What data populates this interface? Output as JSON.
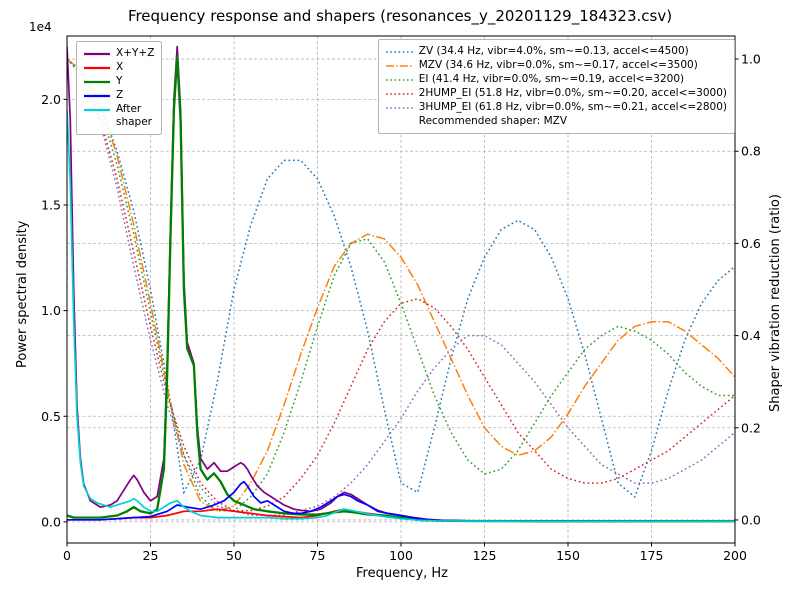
{
  "chart_data": {
    "type": "line",
    "title": "Frequency response and shapers (resonances_y_20201129_184323.csv)",
    "xlabel": "Frequency, Hz",
    "ylabel_left": "Power spectral density",
    "ylabel_right": "Shaper vibration reduction (ratio)",
    "y_offset_text": "1e4",
    "xlim": [
      0,
      200
    ],
    "x_ticks": [
      0,
      25,
      50,
      75,
      100,
      125,
      150,
      175,
      200
    ],
    "left_axis": {
      "lim": [
        -0.1,
        2.3
      ],
      "ticks": [
        0.0,
        0.5,
        1.0,
        1.5,
        2.0
      ],
      "tick_labels": [
        "0.0",
        "0.5",
        "1.0",
        "1.5",
        "2.0"
      ],
      "unit_scale": "1e4"
    },
    "right_axis": {
      "lim": [
        -0.05,
        1.05
      ],
      "ticks": [
        0.0,
        0.2,
        0.4,
        0.6,
        0.8,
        1.0
      ],
      "tick_labels": [
        "0.0",
        "0.2",
        "0.4",
        "0.6",
        "0.8",
        "1.0"
      ]
    },
    "grid": {
      "show": true,
      "color": "#b0b0b0"
    },
    "psd_series": [
      {
        "name": "X+Y+Z",
        "color": "#800080",
        "width": 1.7,
        "x": [
          0,
          1,
          2,
          3,
          4,
          5,
          7,
          10,
          13,
          15,
          17,
          19,
          20,
          21,
          23,
          25,
          27,
          29,
          30,
          31,
          32,
          33,
          34,
          35,
          36,
          37,
          38,
          39,
          40,
          42,
          44,
          46,
          48,
          50,
          51,
          52,
          53,
          54,
          55,
          57,
          59,
          61,
          63,
          65,
          68,
          70,
          73,
          76,
          79,
          81,
          83,
          85,
          87,
          90,
          93,
          96,
          100,
          104,
          108,
          112,
          120,
          130,
          150,
          170,
          200
        ],
        "y": [
          2.25,
          1.9,
          1.1,
          0.55,
          0.3,
          0.18,
          0.1,
          0.07,
          0.08,
          0.1,
          0.15,
          0.2,
          0.22,
          0.2,
          0.14,
          0.1,
          0.12,
          0.3,
          0.75,
          1.4,
          2.0,
          2.25,
          1.95,
          1.15,
          0.85,
          0.8,
          0.75,
          0.45,
          0.3,
          0.25,
          0.28,
          0.24,
          0.24,
          0.26,
          0.27,
          0.28,
          0.27,
          0.25,
          0.22,
          0.17,
          0.14,
          0.12,
          0.1,
          0.08,
          0.06,
          0.055,
          0.05,
          0.06,
          0.09,
          0.12,
          0.14,
          0.13,
          0.11,
          0.08,
          0.055,
          0.04,
          0.03,
          0.02,
          0.012,
          0.008,
          0.005,
          0.004,
          0.004,
          0.003,
          0.003
        ]
      },
      {
        "name": "X",
        "color": "#ff0000",
        "width": 1.7,
        "x": [
          0,
          5,
          10,
          15,
          20,
          25,
          30,
          35,
          40,
          45,
          50,
          55,
          60,
          65,
          70,
          75,
          80,
          83,
          86,
          90,
          95,
          100,
          105,
          110,
          120,
          140,
          200
        ],
        "y": [
          0.01,
          0.01,
          0.01,
          0.015,
          0.02,
          0.02,
          0.03,
          0.05,
          0.05,
          0.06,
          0.05,
          0.04,
          0.03,
          0.025,
          0.02,
          0.03,
          0.05,
          0.06,
          0.05,
          0.04,
          0.03,
          0.02,
          0.01,
          0.006,
          0.004,
          0.003,
          0.003
        ]
      },
      {
        "name": "Y",
        "color": "#008000",
        "width": 2.3,
        "x": [
          0,
          2,
          5,
          10,
          15,
          18,
          20,
          22,
          25,
          27,
          29,
          30,
          31,
          32,
          33,
          34,
          35,
          36,
          37,
          38,
          39,
          40,
          42,
          44,
          46,
          48,
          50,
          53,
          56,
          60,
          65,
          70,
          75,
          80,
          83,
          86,
          90,
          95,
          100,
          105,
          110,
          120,
          140,
          200
        ],
        "y": [
          0.03,
          0.02,
          0.02,
          0.02,
          0.03,
          0.05,
          0.07,
          0.05,
          0.04,
          0.06,
          0.25,
          0.7,
          1.35,
          1.95,
          2.2,
          1.9,
          1.1,
          0.82,
          0.78,
          0.74,
          0.42,
          0.25,
          0.2,
          0.23,
          0.19,
          0.13,
          0.1,
          0.08,
          0.06,
          0.05,
          0.04,
          0.035,
          0.035,
          0.045,
          0.05,
          0.045,
          0.035,
          0.03,
          0.02,
          0.01,
          0.006,
          0.004,
          0.003,
          0.003
        ]
      },
      {
        "name": "Z",
        "color": "#0000ff",
        "width": 1.7,
        "x": [
          0,
          5,
          10,
          15,
          20,
          25,
          30,
          33,
          36,
          40,
          44,
          47,
          50,
          52,
          53,
          54,
          56,
          58,
          60,
          62,
          65,
          68,
          70,
          73,
          76,
          79,
          81,
          83,
          85,
          87,
          90,
          93,
          96,
          100,
          105,
          110,
          120,
          140,
          200
        ],
        "y": [
          0.01,
          0.01,
          0.01,
          0.015,
          0.02,
          0.025,
          0.05,
          0.08,
          0.07,
          0.06,
          0.08,
          0.1,
          0.14,
          0.18,
          0.19,
          0.17,
          0.12,
          0.09,
          0.1,
          0.08,
          0.05,
          0.04,
          0.04,
          0.05,
          0.07,
          0.1,
          0.12,
          0.13,
          0.12,
          0.1,
          0.08,
          0.05,
          0.04,
          0.03,
          0.015,
          0.008,
          0.005,
          0.004,
          0.003
        ]
      },
      {
        "name": "After shaper",
        "legend_lines": [
          "After",
          "shaper"
        ],
        "color": "#00d2d2",
        "width": 1.7,
        "x": [
          0,
          1,
          2,
          3,
          4,
          5,
          7,
          9,
          11,
          13,
          15,
          17,
          19,
          20,
          21,
          23,
          25,
          27,
          29,
          31,
          33,
          35,
          37,
          40,
          45,
          50,
          55,
          60,
          65,
          70,
          75,
          78,
          81,
          83,
          85,
          88,
          91,
          95,
          100,
          105,
          110,
          120,
          140,
          200
        ],
        "y": [
          1.95,
          1.6,
          0.95,
          0.5,
          0.28,
          0.17,
          0.11,
          0.09,
          0.08,
          0.07,
          0.08,
          0.09,
          0.1,
          0.11,
          0.1,
          0.07,
          0.05,
          0.05,
          0.07,
          0.09,
          0.1,
          0.07,
          0.05,
          0.03,
          0.02,
          0.02,
          0.02,
          0.02,
          0.015,
          0.015,
          0.02,
          0.03,
          0.05,
          0.06,
          0.055,
          0.045,
          0.035,
          0.025,
          0.015,
          0.008,
          0.005,
          0.004,
          0.003,
          0.003
        ]
      }
    ],
    "shaper_series": [
      {
        "name": "ZV",
        "label": "ZV (34.4 Hz, vibr=4.0%, sm~=0.13, accel<=4500)",
        "color": "#1f77b4",
        "style": "dotted",
        "x_start": 0,
        "x_step": 5,
        "y": [
          1.0,
          0.97,
          0.9,
          0.8,
          0.67,
          0.5,
          0.3,
          0.06,
          0.13,
          0.3,
          0.5,
          0.64,
          0.74,
          0.78,
          0.78,
          0.74,
          0.66,
          0.55,
          0.41,
          0.24,
          0.08,
          0.06,
          0.2,
          0.35,
          0.48,
          0.57,
          0.63,
          0.65,
          0.63,
          0.57,
          0.48,
          0.36,
          0.22,
          0.08,
          0.05,
          0.15,
          0.28,
          0.39,
          0.47,
          0.52,
          0.55
        ]
      },
      {
        "name": "MZV",
        "label": "MZV (34.6 Hz, vibr=0.0%, sm~=0.17, accel<=3500)",
        "color": "#ff7f0e",
        "style": "dashdot",
        "x_start": 0,
        "x_step": 5,
        "y": [
          1.0,
          0.97,
          0.9,
          0.79,
          0.64,
          0.47,
          0.29,
          0.12,
          0.04,
          0.02,
          0.03,
          0.08,
          0.15,
          0.25,
          0.36,
          0.46,
          0.55,
          0.6,
          0.62,
          0.61,
          0.57,
          0.51,
          0.43,
          0.35,
          0.27,
          0.2,
          0.16,
          0.14,
          0.15,
          0.18,
          0.23,
          0.29,
          0.34,
          0.39,
          0.42,
          0.43,
          0.43,
          0.41,
          0.38,
          0.35,
          0.31
        ]
      },
      {
        "name": "EI",
        "label": "EI (41.4 Hz, vibr=0.0%, sm~=0.19, accel<=3200)",
        "color": "#2ca02c",
        "style": "dotted",
        "x_start": 0,
        "x_step": 5,
        "y": [
          1.0,
          0.97,
          0.89,
          0.77,
          0.62,
          0.45,
          0.28,
          0.14,
          0.05,
          0.02,
          0.02,
          0.05,
          0.1,
          0.19,
          0.3,
          0.42,
          0.53,
          0.6,
          0.61,
          0.56,
          0.47,
          0.37,
          0.27,
          0.19,
          0.13,
          0.1,
          0.11,
          0.15,
          0.21,
          0.27,
          0.32,
          0.37,
          0.4,
          0.42,
          0.41,
          0.39,
          0.36,
          0.32,
          0.29,
          0.27,
          0.27
        ]
      },
      {
        "name": "2HUMP_EI",
        "label": "2HUMP_EI (51.8 Hz, vibr=0.0%, sm~=0.20, accel<=3000)",
        "color": "#d62728",
        "style": "dotted",
        "x_start": 0,
        "x_step": 5,
        "y": [
          1.0,
          0.96,
          0.87,
          0.74,
          0.58,
          0.42,
          0.27,
          0.16,
          0.08,
          0.04,
          0.02,
          0.02,
          0.03,
          0.05,
          0.09,
          0.14,
          0.21,
          0.29,
          0.37,
          0.43,
          0.47,
          0.48,
          0.46,
          0.42,
          0.37,
          0.31,
          0.25,
          0.19,
          0.15,
          0.11,
          0.09,
          0.08,
          0.08,
          0.09,
          0.11,
          0.13,
          0.15,
          0.18,
          0.21,
          0.24,
          0.27
        ]
      },
      {
        "name": "3HUMP_EI",
        "label": "3HUMP_EI (61.8 Hz, vibr=0.0%, sm~=0.21, accel<=2800)",
        "color": "#9467bd",
        "style": "dotted",
        "x_start": 0,
        "x_step": 5,
        "y": [
          1.0,
          0.96,
          0.86,
          0.72,
          0.55,
          0.39,
          0.25,
          0.14,
          0.07,
          0.03,
          0.02,
          0.01,
          0.01,
          0.01,
          0.02,
          0.03,
          0.05,
          0.08,
          0.12,
          0.17,
          0.22,
          0.28,
          0.33,
          0.37,
          0.4,
          0.4,
          0.38,
          0.34,
          0.3,
          0.25,
          0.2,
          0.16,
          0.12,
          0.1,
          0.08,
          0.08,
          0.09,
          0.11,
          0.13,
          0.16,
          0.19
        ]
      }
    ],
    "recommended_label": "Recommended shaper: MZV"
  }
}
